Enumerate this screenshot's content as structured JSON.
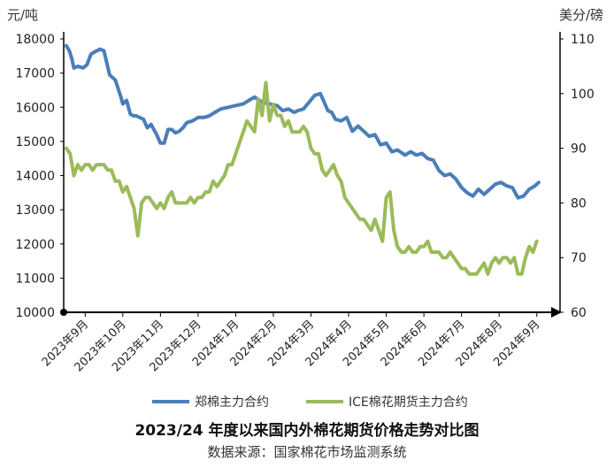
{
  "chart_data": {
    "type": "line",
    "title": "2023/24 年度以来国内外棉花期货价格走势对比图",
    "source": "数据来源：国家棉花市场监测系统",
    "y_left": {
      "unit": "元/吨",
      "ylim": [
        10000,
        18000
      ],
      "ticks": [
        10000,
        11000,
        12000,
        13000,
        14000,
        15000,
        16000,
        17000,
        18000
      ]
    },
    "y_right": {
      "unit": "美分/磅",
      "ylim": [
        60,
        110
      ],
      "ticks": [
        60,
        70,
        80,
        90,
        100,
        110
      ]
    },
    "x_ticks": [
      "2023年9月",
      "2023年10月",
      "2023年11月",
      "2023年12月",
      "2024年1月",
      "2024年2月",
      "2024年3月",
      "2024年4月",
      "2024年5月",
      "2024年6月",
      "2024年7月",
      "2024年8月",
      "2024年9月"
    ],
    "grid": false,
    "legend_position": "bottom",
    "series": [
      {
        "name": "郑棉主力合约",
        "axis": "left",
        "color": "#4a7ebb",
        "x": [
          0,
          0.08,
          0.15,
          0.2,
          0.3,
          0.45,
          0.55,
          0.65,
          0.75,
          0.9,
          1.0,
          1.15,
          1.3,
          1.45,
          1.5,
          1.6,
          1.7,
          1.78,
          1.85,
          1.95,
          2.05,
          2.15,
          2.25,
          2.4,
          2.5,
          2.6,
          2.7,
          2.8,
          2.9,
          3.0,
          3.1,
          3.2,
          3.35,
          3.5,
          3.65,
          3.8,
          3.95,
          4.1,
          4.3,
          4.5,
          4.7,
          4.85,
          5.0,
          5.2,
          5.4,
          5.6,
          5.75,
          5.9,
          6.05,
          6.15,
          6.3,
          6.45,
          6.6,
          6.75,
          6.85,
          6.95,
          7.05,
          7.15,
          7.3,
          7.45,
          7.6,
          7.75,
          7.9,
          8.05,
          8.2,
          8.35,
          8.5,
          8.65,
          8.8,
          9.0,
          9.15,
          9.3,
          9.45,
          9.6,
          9.75,
          9.9,
          10.05,
          10.2,
          10.35,
          10.5,
          10.65,
          10.8,
          10.95,
          11.1,
          11.25,
          11.4,
          11.55,
          11.7,
          11.85,
          12.0,
          12.15,
          12.3,
          12.45,
          12.55
        ],
        "values": [
          17800,
          17650,
          17400,
          17150,
          17200,
          17150,
          17250,
          17550,
          17620,
          17700,
          17650,
          16950,
          16800,
          16300,
          16100,
          16200,
          15800,
          15750,
          15750,
          15700,
          15650,
          15400,
          15500,
          15200,
          14950,
          14950,
          15350,
          15350,
          15250,
          15300,
          15400,
          15550,
          15600,
          15700,
          15700,
          15750,
          15850,
          15950,
          16000,
          16050,
          16100,
          16200,
          16300,
          16150,
          16100,
          16050,
          15900,
          15950,
          15850,
          15900,
          15950,
          16150,
          16350,
          16400,
          16150,
          15900,
          15850,
          15650,
          15600,
          15700,
          15300,
          15450,
          15300,
          15150,
          15200,
          14900,
          14950,
          14700,
          14750,
          14600,
          14700,
          14600,
          14650,
          14500,
          14450,
          14150,
          14000,
          14050,
          13900,
          13650,
          13500,
          13400,
          13600,
          13450,
          13600,
          13750,
          13800,
          13700,
          13650,
          13350,
          13400,
          13600,
          13700,
          13800
        ]
      },
      {
        "name": "ICE棉花期货主力合约",
        "axis": "right",
        "color": "#9bbb59",
        "x": [
          0,
          0.1,
          0.2,
          0.3,
          0.4,
          0.5,
          0.6,
          0.7,
          0.8,
          0.9,
          1.0,
          1.1,
          1.2,
          1.3,
          1.4,
          1.5,
          1.6,
          1.7,
          1.8,
          1.9,
          2.0,
          2.1,
          2.2,
          2.3,
          2.4,
          2.5,
          2.6,
          2.7,
          2.8,
          2.9,
          3.0,
          3.1,
          3.2,
          3.3,
          3.4,
          3.5,
          3.6,
          3.7,
          3.8,
          3.9,
          4.0,
          4.1,
          4.2,
          4.3,
          4.4,
          4.5,
          4.6,
          4.7,
          4.8,
          4.9,
          5.0,
          5.1,
          5.2,
          5.3,
          5.4,
          5.5,
          5.6,
          5.7,
          5.8,
          5.9,
          6.0,
          6.1,
          6.2,
          6.3,
          6.4,
          6.5,
          6.6,
          6.7,
          6.8,
          6.9,
          7.0,
          7.1,
          7.2,
          7.3,
          7.4,
          7.5,
          7.6,
          7.7,
          7.8,
          7.9,
          8.0,
          8.1,
          8.2,
          8.3,
          8.4,
          8.5,
          8.6,
          8.7,
          8.8,
          8.9,
          9.0,
          9.1,
          9.2,
          9.3,
          9.4,
          9.5,
          9.6,
          9.7,
          9.8,
          9.9,
          10.0,
          10.1,
          10.2,
          10.3,
          10.4,
          10.5,
          10.6,
          10.7,
          10.8,
          10.9,
          11.0,
          11.1,
          11.2,
          11.3,
          11.4,
          11.5,
          11.6,
          11.7,
          11.8,
          11.9,
          12.0,
          12.1,
          12.2,
          12.3,
          12.4,
          12.5
        ],
        "values": [
          90,
          89,
          85,
          87,
          86,
          87,
          87,
          86,
          87,
          87,
          87,
          86,
          86,
          84,
          84,
          82,
          83,
          81,
          79,
          74,
          80,
          81,
          81,
          80,
          79,
          80,
          79,
          81,
          82,
          80,
          80,
          80,
          80,
          81,
          80,
          81,
          81,
          82,
          82,
          84,
          83,
          84,
          85,
          87,
          87,
          89,
          91,
          93,
          95,
          94,
          93,
          99,
          96,
          102,
          95,
          98,
          96,
          96,
          94,
          95,
          93,
          93,
          93,
          94,
          93,
          90,
          89,
          89,
          86,
          85,
          86,
          87,
          85,
          84,
          81,
          80,
          79,
          78,
          77,
          77,
          76,
          75,
          77,
          75,
          73,
          81,
          82,
          75,
          72,
          71,
          71,
          72,
          71,
          71,
          72,
          72,
          73,
          71,
          71,
          71,
          70,
          70,
          71,
          70,
          69,
          68,
          68,
          67,
          67,
          67,
          68,
          69,
          67,
          69,
          70,
          69,
          70,
          70,
          69,
          70,
          67,
          67,
          70,
          72,
          71,
          73
        ]
      }
    ]
  }
}
